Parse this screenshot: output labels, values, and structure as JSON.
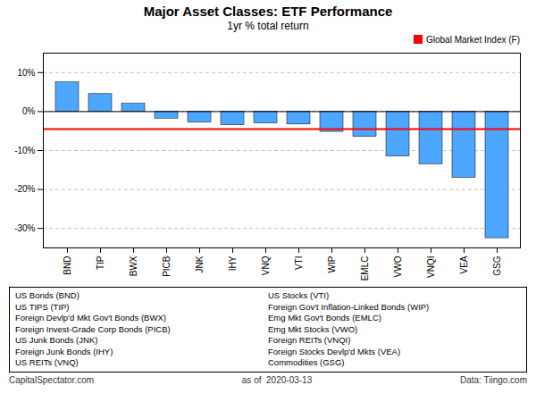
{
  "chart_data": {
    "type": "bar",
    "title": "Major Asset Classes: ETF Performance",
    "subtitle": "1yr % total return",
    "categories": [
      "BND",
      "TIP",
      "BWX",
      "PICB",
      "JNK",
      "IHY",
      "VNQ",
      "VTI",
      "WIP",
      "EMLC",
      "VWO",
      "VNQI",
      "VEA",
      "GSG"
    ],
    "values": [
      7.5,
      4.5,
      2.0,
      -1.8,
      -2.8,
      -3.5,
      -3.0,
      -3.3,
      -5.2,
      -6.5,
      -11.5,
      -13.5,
      -17.0,
      -32.5
    ],
    "color": "#4da6ff",
    "reference_line": {
      "name": "Global Market Index (F)",
      "value": -4.5,
      "color": "#FF0000"
    },
    "ylim": [
      -35,
      15
    ],
    "yticks": [
      {
        "value": -30,
        "label": "-30%"
      },
      {
        "value": -20,
        "label": "-20%"
      },
      {
        "value": -10,
        "label": "-10%"
      },
      {
        "value": 0,
        "label": "0%"
      },
      {
        "value": 10,
        "label": "10%"
      }
    ],
    "grid": true,
    "legend": "upper right",
    "notes_left": [
      "US Bonds (BND)",
      "US TIPS (TIP)",
      "Foreign Devlp'd Mkt Gov't Bonds (BWX)",
      "Foreign Invest-Grade Corp Bonds (PICB)",
      "US Junk Bonds (JNK)",
      "Foreign Junk Bonds (IHY)",
      "US REITs (VNQ)"
    ],
    "notes_right": [
      "US Stocks (VTI)",
      "Foreign Gov't Inflation-Linked Bonds (WIP)",
      "Emg Mkt Gov't Bonds (EMLC)",
      "Emg Mkt Stocks (VWO)",
      "Foreign REITs (VNQI)",
      "Foreign Stocks Devlp'd Mkts (VEA)",
      "Commodities (GSG)"
    ],
    "footer": [
      "CapitalSpectator.com",
      "as of  2020-03-13",
      "Data: Tiingo.com"
    ]
  }
}
